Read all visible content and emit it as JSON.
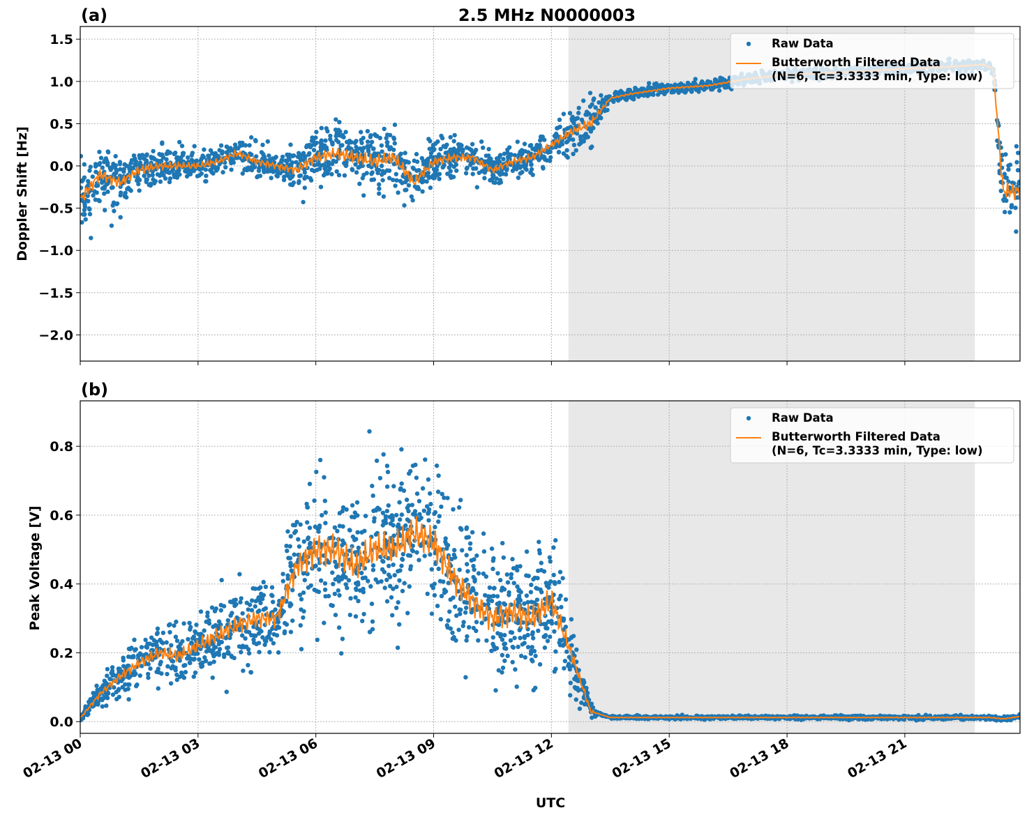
{
  "figure_title": "2.5 MHz N0000003",
  "xlabel": "UTC",
  "x_ticks": [
    "02-13 00",
    "02-13 03",
    "02-13 06",
    "02-13 09",
    "02-13 12",
    "02-13 15",
    "02-13 18",
    "02-13 21"
  ],
  "colors": {
    "raw": "#1f77b4",
    "filtered": "#ff7f0e",
    "shade": "#e8e8e8"
  },
  "chart_data": [
    {
      "type": "scatter+line",
      "panel_label": "(a)",
      "ylabel": "Doppler Shift [Hz]",
      "xlim": [
        "02-13 00:00",
        "02-13 23:56"
      ],
      "ylim": [
        -2.31,
        1.65
      ],
      "y_ticks": [
        "−2.0",
        "−1.5",
        "−1.0",
        "−0.5",
        "0.0",
        "0.5",
        "1.0",
        "1.5"
      ],
      "y_tick_values": [
        -2.0,
        -1.5,
        -1.0,
        -0.5,
        0.0,
        0.5,
        1.0,
        1.5
      ],
      "grid": true,
      "shaded_interval": [
        "02-13 12:26",
        "02-13 22:47"
      ],
      "legend": {
        "placement": "top-right",
        "entries": [
          "Raw Data",
          "Butterworth Filtered Data",
          "(N=6, Tc=3.3333 min, Type: low)"
        ]
      },
      "series": [
        {
          "name": "Butterworth Filtered Data",
          "kind": "line",
          "x": [
            "00:00",
            "00:30",
            "01:00",
            "01:30",
            "02:00",
            "02:30",
            "03:00",
            "03:30",
            "04:00",
            "04:30",
            "05:00",
            "05:30",
            "06:00",
            "06:30",
            "07:00",
            "07:30",
            "08:00",
            "08:30",
            "09:00",
            "09:30",
            "10:00",
            "10:30",
            "11:00",
            "11:30",
            "12:00",
            "12:30",
            "13:00",
            "13:30",
            "14:00",
            "15:00",
            "16:00",
            "17:00",
            "18:00",
            "19:00",
            "20:00",
            "21:00",
            "22:00",
            "23:00",
            "23:15",
            "23:30",
            "23:56"
          ],
          "y": [
            -0.4,
            -0.1,
            -0.2,
            -0.05,
            0.0,
            0.0,
            0.0,
            0.05,
            0.15,
            0.05,
            0.0,
            -0.05,
            0.1,
            0.15,
            0.1,
            0.05,
            0.1,
            -0.2,
            0.05,
            0.1,
            0.1,
            -0.05,
            0.05,
            0.1,
            0.25,
            0.4,
            0.5,
            0.8,
            0.85,
            0.92,
            0.95,
            1.03,
            1.08,
            1.1,
            1.12,
            1.15,
            1.17,
            1.2,
            1.15,
            -0.3,
            -0.3
          ]
        },
        {
          "name": "Raw Data",
          "kind": "scatter",
          "x": [
            "00:00",
            "01:00",
            "02:00",
            "03:00",
            "04:00",
            "05:00",
            "06:00",
            "07:00",
            "08:00",
            "09:00",
            "10:00",
            "11:00",
            "12:00",
            "13:00",
            "13:30",
            "23:15",
            "23:30",
            "23:56"
          ],
          "spread": [
            0.3,
            0.25,
            0.18,
            0.15,
            0.15,
            0.15,
            0.25,
            0.3,
            0.3,
            0.2,
            0.18,
            0.15,
            0.15,
            0.25,
            0.04,
            0.04,
            0.4,
            0.4
          ]
        }
      ]
    },
    {
      "type": "scatter+line",
      "panel_label": "(b)",
      "ylabel": "Peak Voltage [V]",
      "xlim": [
        "02-13 00:00",
        "02-13 23:56"
      ],
      "ylim": [
        -0.034,
        0.932
      ],
      "y_ticks": [
        "0.0",
        "0.2",
        "0.4",
        "0.6",
        "0.8"
      ],
      "y_tick_values": [
        0.0,
        0.2,
        0.4,
        0.6,
        0.8
      ],
      "grid": true,
      "shaded_interval": [
        "02-13 12:26",
        "02-13 22:47"
      ],
      "legend": {
        "placement": "top-right",
        "entries": [
          "Raw Data",
          "Butterworth Filtered Data",
          "(N=6, Tc=3.3333 min, Type: low)"
        ]
      },
      "series": [
        {
          "name": "Butterworth Filtered Data",
          "kind": "line",
          "x": [
            "00:00",
            "00:30",
            "01:00",
            "01:30",
            "02:00",
            "02:30",
            "03:00",
            "03:30",
            "04:00",
            "04:30",
            "05:00",
            "05:30",
            "06:00",
            "06:30",
            "07:00",
            "07:30",
            "08:00",
            "08:30",
            "09:00",
            "09:30",
            "10:00",
            "10:30",
            "11:00",
            "11:30",
            "12:00",
            "12:30",
            "13:00",
            "13:30",
            "23:10",
            "23:30",
            "23:56"
          ],
          "y": [
            0.01,
            0.08,
            0.13,
            0.17,
            0.2,
            0.19,
            0.22,
            0.25,
            0.28,
            0.3,
            0.3,
            0.45,
            0.5,
            0.5,
            0.45,
            0.5,
            0.5,
            0.55,
            0.52,
            0.42,
            0.35,
            0.3,
            0.32,
            0.3,
            0.35,
            0.2,
            0.03,
            0.012,
            0.012,
            0.008,
            0.015
          ]
        },
        {
          "name": "Raw Data",
          "kind": "scatter",
          "x": [
            "00:00",
            "01:00",
            "02:00",
            "03:00",
            "04:00",
            "05:00",
            "06:00",
            "07:00",
            "08:00",
            "09:00",
            "10:00",
            "11:00",
            "12:00",
            "12:40",
            "13:10",
            "23:56"
          ],
          "spread": [
            0.01,
            0.05,
            0.07,
            0.08,
            0.1,
            0.1,
            0.18,
            0.18,
            0.18,
            0.18,
            0.15,
            0.15,
            0.15,
            0.06,
            0.003,
            0.005
          ]
        }
      ]
    }
  ]
}
